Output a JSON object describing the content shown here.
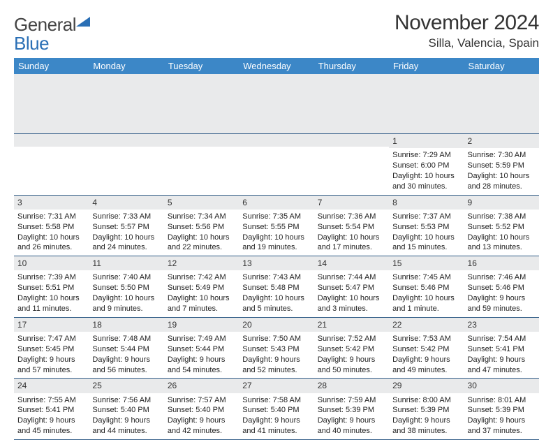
{
  "brand": {
    "word1": "General",
    "word2": "Blue"
  },
  "title": "November 2024",
  "location": "Silla, Valencia, Spain",
  "colors": {
    "header_bg": "#3c87c7",
    "header_fg": "#ffffff",
    "daynum_bg": "#e9eaeb",
    "rule": "#2f5b86",
    "logo_blue": "#2a6fb5"
  },
  "weekdays": [
    "Sunday",
    "Monday",
    "Tuesday",
    "Wednesday",
    "Thursday",
    "Friday",
    "Saturday"
  ],
  "weeks": [
    [
      {
        "n": "",
        "sr": "",
        "ss": "",
        "dl": ""
      },
      {
        "n": "",
        "sr": "",
        "ss": "",
        "dl": ""
      },
      {
        "n": "",
        "sr": "",
        "ss": "",
        "dl": ""
      },
      {
        "n": "",
        "sr": "",
        "ss": "",
        "dl": ""
      },
      {
        "n": "",
        "sr": "",
        "ss": "",
        "dl": ""
      },
      {
        "n": "1",
        "sr": "Sunrise: 7:29 AM",
        "ss": "Sunset: 6:00 PM",
        "dl": "Daylight: 10 hours and 30 minutes."
      },
      {
        "n": "2",
        "sr": "Sunrise: 7:30 AM",
        "ss": "Sunset: 5:59 PM",
        "dl": "Daylight: 10 hours and 28 minutes."
      }
    ],
    [
      {
        "n": "3",
        "sr": "Sunrise: 7:31 AM",
        "ss": "Sunset: 5:58 PM",
        "dl": "Daylight: 10 hours and 26 minutes."
      },
      {
        "n": "4",
        "sr": "Sunrise: 7:33 AM",
        "ss": "Sunset: 5:57 PM",
        "dl": "Daylight: 10 hours and 24 minutes."
      },
      {
        "n": "5",
        "sr": "Sunrise: 7:34 AM",
        "ss": "Sunset: 5:56 PM",
        "dl": "Daylight: 10 hours and 22 minutes."
      },
      {
        "n": "6",
        "sr": "Sunrise: 7:35 AM",
        "ss": "Sunset: 5:55 PM",
        "dl": "Daylight: 10 hours and 19 minutes."
      },
      {
        "n": "7",
        "sr": "Sunrise: 7:36 AM",
        "ss": "Sunset: 5:54 PM",
        "dl": "Daylight: 10 hours and 17 minutes."
      },
      {
        "n": "8",
        "sr": "Sunrise: 7:37 AM",
        "ss": "Sunset: 5:53 PM",
        "dl": "Daylight: 10 hours and 15 minutes."
      },
      {
        "n": "9",
        "sr": "Sunrise: 7:38 AM",
        "ss": "Sunset: 5:52 PM",
        "dl": "Daylight: 10 hours and 13 minutes."
      }
    ],
    [
      {
        "n": "10",
        "sr": "Sunrise: 7:39 AM",
        "ss": "Sunset: 5:51 PM",
        "dl": "Daylight: 10 hours and 11 minutes."
      },
      {
        "n": "11",
        "sr": "Sunrise: 7:40 AM",
        "ss": "Sunset: 5:50 PM",
        "dl": "Daylight: 10 hours and 9 minutes."
      },
      {
        "n": "12",
        "sr": "Sunrise: 7:42 AM",
        "ss": "Sunset: 5:49 PM",
        "dl": "Daylight: 10 hours and 7 minutes."
      },
      {
        "n": "13",
        "sr": "Sunrise: 7:43 AM",
        "ss": "Sunset: 5:48 PM",
        "dl": "Daylight: 10 hours and 5 minutes."
      },
      {
        "n": "14",
        "sr": "Sunrise: 7:44 AM",
        "ss": "Sunset: 5:47 PM",
        "dl": "Daylight: 10 hours and 3 minutes."
      },
      {
        "n": "15",
        "sr": "Sunrise: 7:45 AM",
        "ss": "Sunset: 5:46 PM",
        "dl": "Daylight: 10 hours and 1 minute."
      },
      {
        "n": "16",
        "sr": "Sunrise: 7:46 AM",
        "ss": "Sunset: 5:46 PM",
        "dl": "Daylight: 9 hours and 59 minutes."
      }
    ],
    [
      {
        "n": "17",
        "sr": "Sunrise: 7:47 AM",
        "ss": "Sunset: 5:45 PM",
        "dl": "Daylight: 9 hours and 57 minutes."
      },
      {
        "n": "18",
        "sr": "Sunrise: 7:48 AM",
        "ss": "Sunset: 5:44 PM",
        "dl": "Daylight: 9 hours and 56 minutes."
      },
      {
        "n": "19",
        "sr": "Sunrise: 7:49 AM",
        "ss": "Sunset: 5:44 PM",
        "dl": "Daylight: 9 hours and 54 minutes."
      },
      {
        "n": "20",
        "sr": "Sunrise: 7:50 AM",
        "ss": "Sunset: 5:43 PM",
        "dl": "Daylight: 9 hours and 52 minutes."
      },
      {
        "n": "21",
        "sr": "Sunrise: 7:52 AM",
        "ss": "Sunset: 5:42 PM",
        "dl": "Daylight: 9 hours and 50 minutes."
      },
      {
        "n": "22",
        "sr": "Sunrise: 7:53 AM",
        "ss": "Sunset: 5:42 PM",
        "dl": "Daylight: 9 hours and 49 minutes."
      },
      {
        "n": "23",
        "sr": "Sunrise: 7:54 AM",
        "ss": "Sunset: 5:41 PM",
        "dl": "Daylight: 9 hours and 47 minutes."
      }
    ],
    [
      {
        "n": "24",
        "sr": "Sunrise: 7:55 AM",
        "ss": "Sunset: 5:41 PM",
        "dl": "Daylight: 9 hours and 45 minutes."
      },
      {
        "n": "25",
        "sr": "Sunrise: 7:56 AM",
        "ss": "Sunset: 5:40 PM",
        "dl": "Daylight: 9 hours and 44 minutes."
      },
      {
        "n": "26",
        "sr": "Sunrise: 7:57 AM",
        "ss": "Sunset: 5:40 PM",
        "dl": "Daylight: 9 hours and 42 minutes."
      },
      {
        "n": "27",
        "sr": "Sunrise: 7:58 AM",
        "ss": "Sunset: 5:40 PM",
        "dl": "Daylight: 9 hours and 41 minutes."
      },
      {
        "n": "28",
        "sr": "Sunrise: 7:59 AM",
        "ss": "Sunset: 5:39 PM",
        "dl": "Daylight: 9 hours and 40 minutes."
      },
      {
        "n": "29",
        "sr": "Sunrise: 8:00 AM",
        "ss": "Sunset: 5:39 PM",
        "dl": "Daylight: 9 hours and 38 minutes."
      },
      {
        "n": "30",
        "sr": "Sunrise: 8:01 AM",
        "ss": "Sunset: 5:39 PM",
        "dl": "Daylight: 9 hours and 37 minutes."
      }
    ]
  ]
}
